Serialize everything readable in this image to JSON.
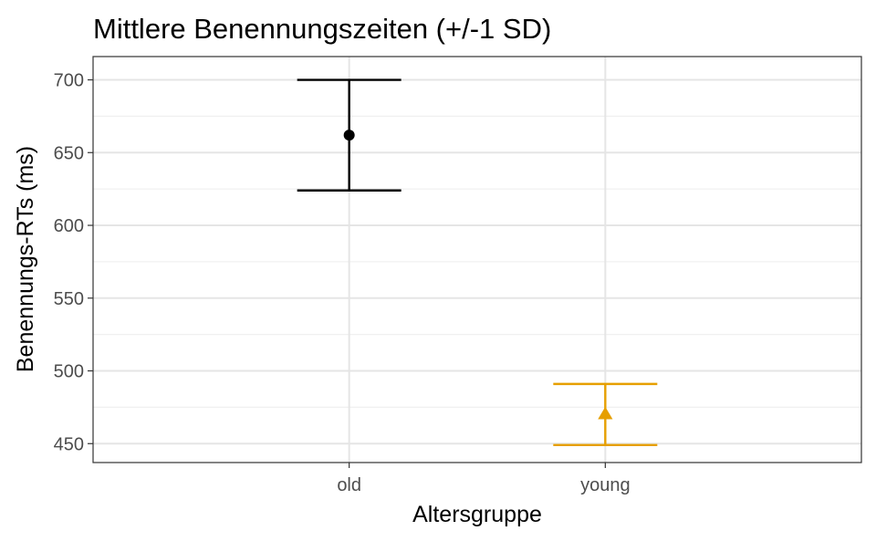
{
  "chart_data": {
    "type": "scatter",
    "title": "Mittlere Benennungszeiten (+/-1 SD)",
    "xlabel": "Altersgruppe",
    "ylabel": "Benennungs-RTs (ms)",
    "categories": [
      "old",
      "young"
    ],
    "ylim": [
      437,
      716
    ],
    "y_ticks": [
      450,
      500,
      550,
      600,
      650,
      700
    ],
    "y_tick_labels": [
      "450",
      "500",
      "550",
      "600",
      "650",
      "700"
    ],
    "grid": true,
    "legend": "none",
    "series": [
      {
        "category": "old",
        "mean": 662,
        "lower": 624,
        "upper": 700,
        "shape": "circle",
        "color": "#000000"
      },
      {
        "category": "young",
        "mean": 470,
        "lower": 449,
        "upper": 491,
        "shape": "triangle",
        "color": "#E69F00"
      }
    ]
  }
}
